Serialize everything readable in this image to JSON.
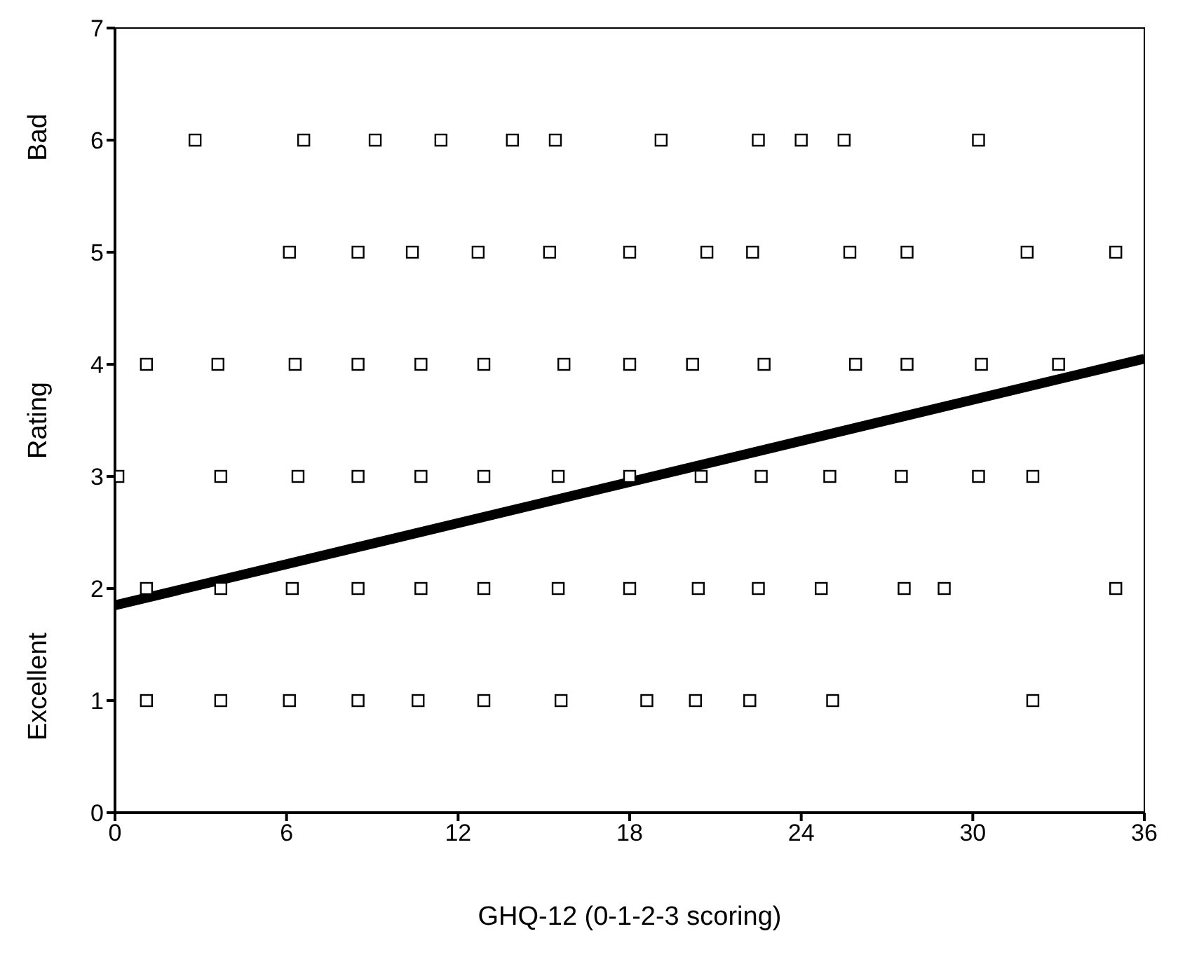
{
  "chart_data": {
    "type": "scatter",
    "xlabel": "GHQ-12 (0-1-2-3 scoring)",
    "ylabel": "Rating",
    "annotations": [
      "Bad",
      "Excellent"
    ],
    "xlim": [
      0,
      36
    ],
    "xticks": [
      0,
      6,
      12,
      18,
      24,
      30,
      36
    ],
    "ylim": [
      0,
      7
    ],
    "yticks": [
      0,
      1,
      2,
      3,
      4,
      5,
      6,
      7
    ],
    "grid": false,
    "series": [
      {
        "marker": "square",
        "color": "#000000",
        "x": [
          2.8,
          6.6,
          9.1,
          11.4,
          13.9,
          15.4,
          19.1,
          22.5,
          24.0,
          25.5,
          30.2,
          6.1,
          8.5,
          10.4,
          12.7,
          15.2,
          18.0,
          20.7,
          22.3,
          25.7,
          27.7,
          31.9,
          35.0,
          1.1,
          3.6,
          6.3,
          8.5,
          10.7,
          12.9,
          15.7,
          18.0,
          20.2,
          22.7,
          25.9,
          27.7,
          30.3,
          33.0,
          0.1,
          3.7,
          6.4,
          8.5,
          10.7,
          12.9,
          15.5,
          18.0,
          20.5,
          22.6,
          25.0,
          27.5,
          30.2,
          32.1,
          1.1,
          3.7,
          6.2,
          8.5,
          10.7,
          12.9,
          15.5,
          18.0,
          20.4,
          22.5,
          24.7,
          27.6,
          29.0,
          35.0,
          1.1,
          3.7,
          6.1,
          8.5,
          10.6,
          12.9,
          15.6,
          18.6,
          20.3,
          22.2,
          25.1,
          32.1
        ],
        "values": [
          6,
          6,
          6,
          6,
          6,
          6,
          6,
          6,
          6,
          6,
          6,
          5,
          5,
          5,
          5,
          5,
          5,
          5,
          5,
          5,
          5,
          5,
          5,
          4,
          4,
          4,
          4,
          4,
          4,
          4,
          4,
          4,
          4,
          4,
          4,
          4,
          4,
          3,
          3,
          3,
          3,
          3,
          3,
          3,
          3,
          3,
          3,
          3,
          3,
          3,
          3,
          2,
          2,
          2,
          2,
          2,
          2,
          2,
          2,
          2,
          2,
          2,
          2,
          2,
          2,
          1,
          1,
          1,
          1,
          1,
          1,
          1,
          1,
          1,
          1,
          1,
          1
        ]
      },
      {
        "type": "line",
        "color": "#000000",
        "x": [
          0,
          36
        ],
        "values": [
          1.85,
          4.05
        ]
      }
    ]
  }
}
